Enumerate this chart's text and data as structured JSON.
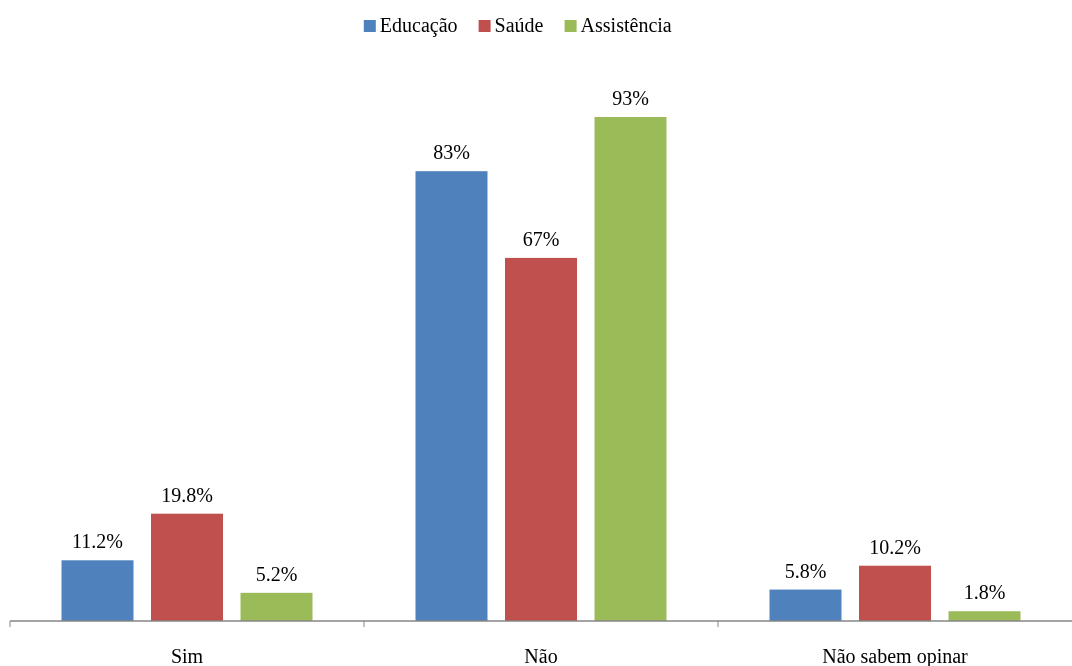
{
  "chart_data": {
    "type": "bar",
    "categories": [
      "Sim",
      "Não",
      "Não sabem opinar"
    ],
    "series": [
      {
        "name": "Educação",
        "color": "#4f81bd",
        "values": [
          11.2,
          83,
          5.8
        ],
        "value_labels": [
          "11.2%",
          "83%",
          "5.8%"
        ]
      },
      {
        "name": "Saúde",
        "color": "#c0504d",
        "values": [
          19.8,
          67,
          10.2
        ],
        "value_labels": [
          "19.8%",
          "67%",
          "10.2%"
        ]
      },
      {
        "name": "Assistência",
        "color": "#9bbb59",
        "values": [
          5.2,
          93,
          1.8
        ],
        "value_labels": [
          "5.2%",
          "93%",
          "1.8%"
        ]
      }
    ],
    "legend": "top"
  }
}
